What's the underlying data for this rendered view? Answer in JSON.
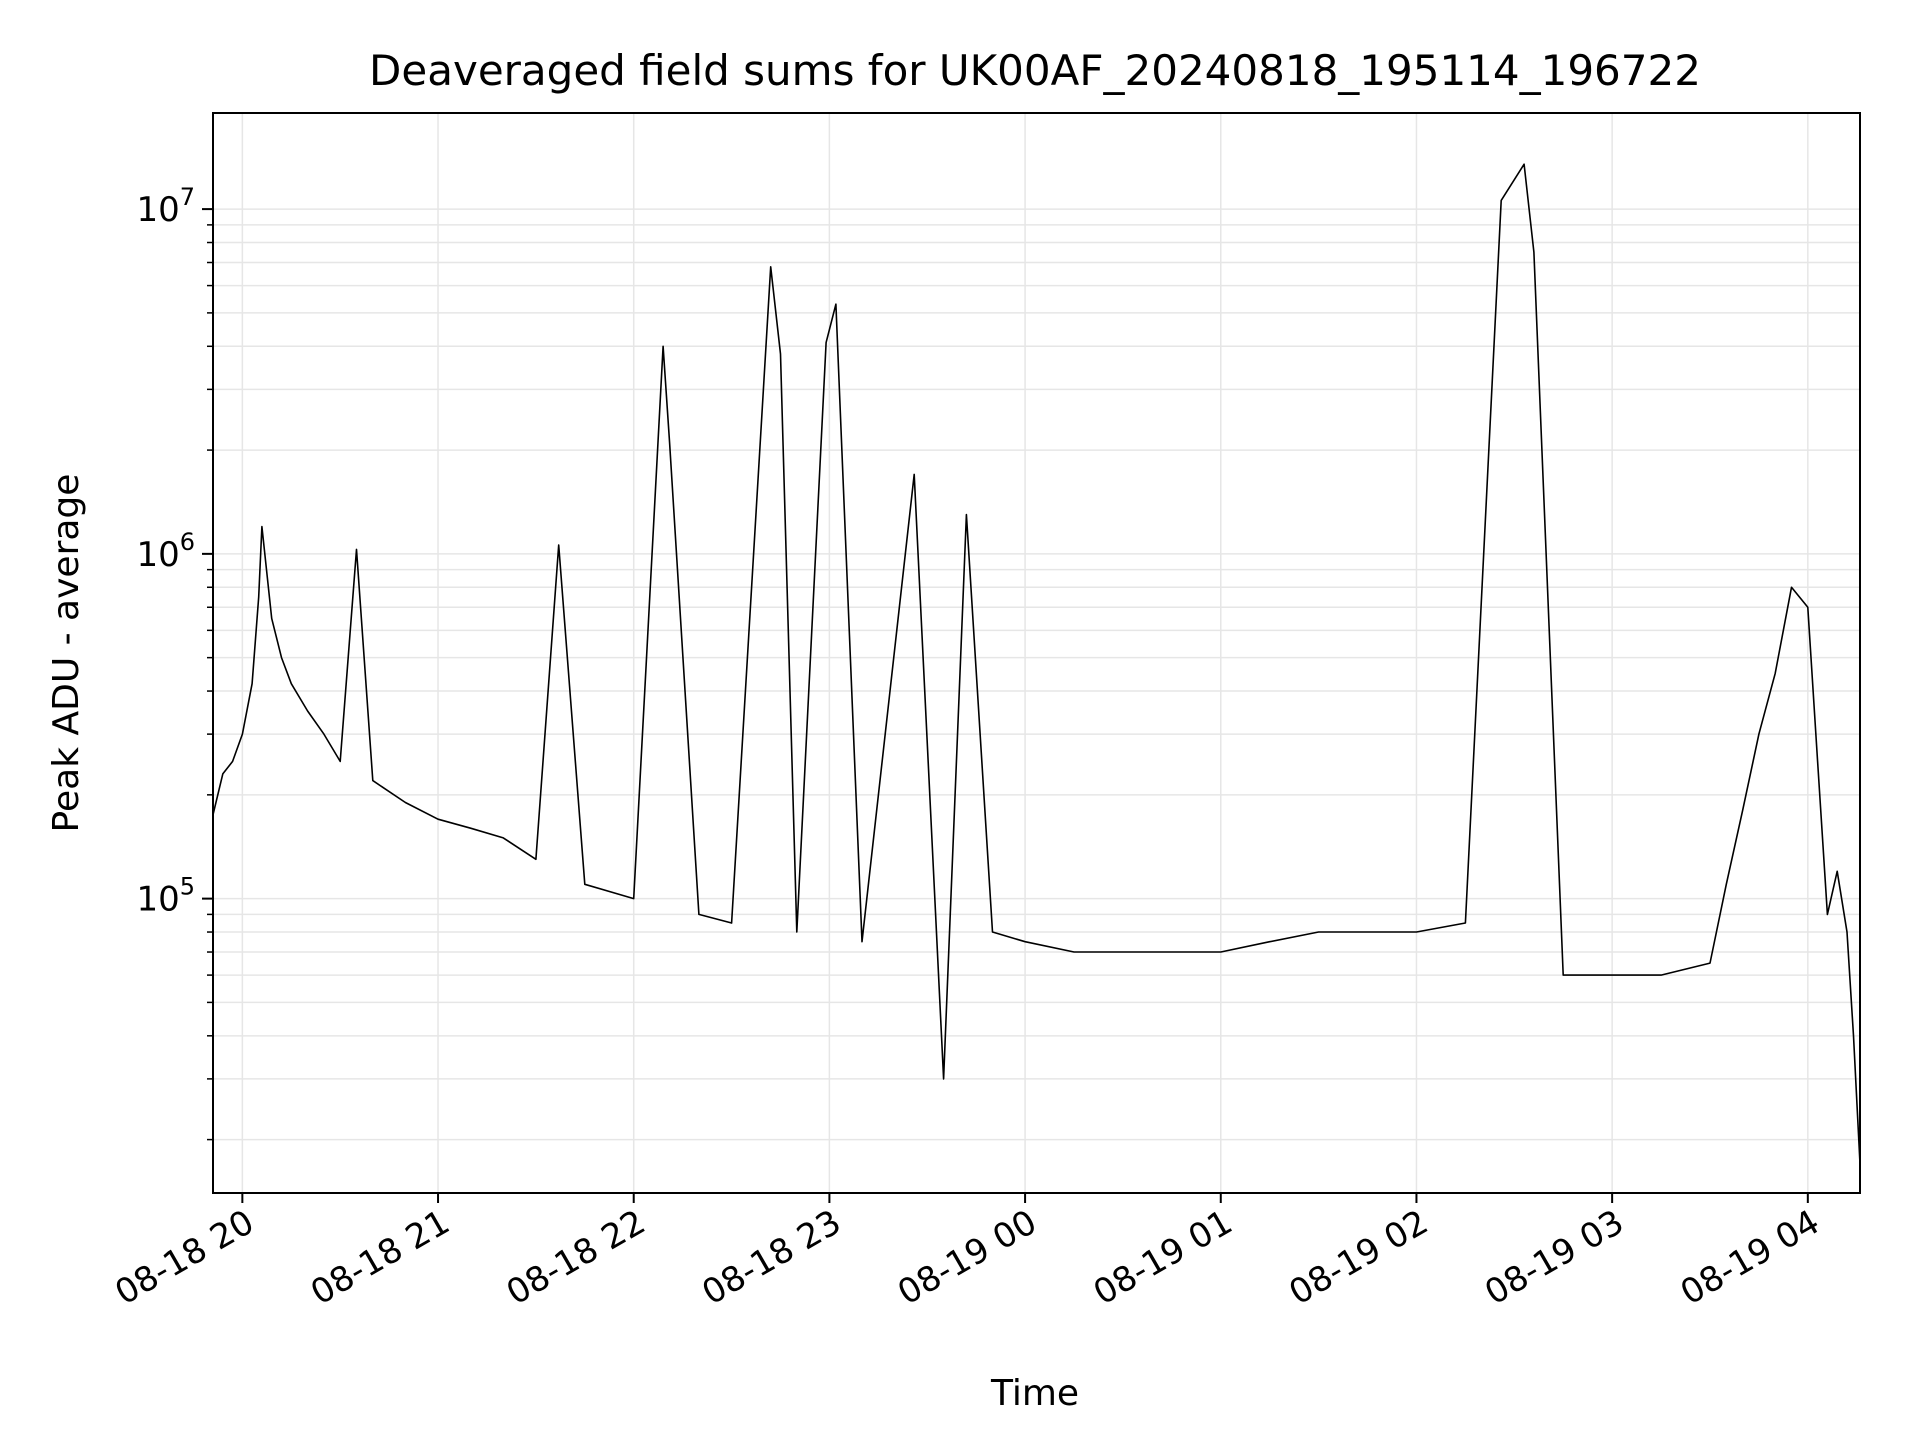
{
  "chart_data": {
    "type": "line",
    "title": "Deaveraged field sums for UK00AF_20240818_195114_196722",
    "xlabel": "Time",
    "ylabel": "Peak ADU - average",
    "yscale": "log",
    "xlim": [
      "2024-08-18 19:51",
      "2024-08-19 04:16"
    ],
    "ylim": [
      14000,
      19000000
    ],
    "x_ticks": [
      "08-18 20",
      "08-18 21",
      "08-18 22",
      "08-18 23",
      "08-19 00",
      "08-19 01",
      "08-19 02",
      "08-19 03",
      "08-19 04"
    ],
    "y_ticks": [
      {
        "base": "10",
        "exp": "5",
        "value": 100000
      },
      {
        "base": "10",
        "exp": "6",
        "value": 1000000
      },
      {
        "base": "10",
        "exp": "7",
        "value": 10000000
      }
    ],
    "grid": true,
    "line_color": "#000000",
    "series": [
      {
        "points": [
          [
            "2024-08-18 19:51",
            175000
          ],
          [
            "2024-08-18 19:54",
            230000
          ],
          [
            "2024-08-18 19:57",
            250000
          ],
          [
            "2024-08-18 20:00",
            300000
          ],
          [
            "2024-08-18 20:03",
            420000
          ],
          [
            "2024-08-18 20:05",
            750000
          ],
          [
            "2024-08-18 20:06",
            1200000
          ],
          [
            "2024-08-18 20:09",
            650000
          ],
          [
            "2024-08-18 20:12",
            500000
          ],
          [
            "2024-08-18 20:15",
            420000
          ],
          [
            "2024-08-18 20:20",
            350000
          ],
          [
            "2024-08-18 20:25",
            300000
          ],
          [
            "2024-08-18 20:30",
            250000
          ],
          [
            "2024-08-18 20:35",
            1030000
          ],
          [
            "2024-08-18 20:40",
            220000
          ],
          [
            "2024-08-18 20:50",
            190000
          ],
          [
            "2024-08-18 21:00",
            170000
          ],
          [
            "2024-08-18 21:10",
            160000
          ],
          [
            "2024-08-18 21:20",
            150000
          ],
          [
            "2024-08-18 21:30",
            130000
          ],
          [
            "2024-08-18 21:37",
            1060000
          ],
          [
            "2024-08-18 21:45",
            110000
          ],
          [
            "2024-08-18 22:00",
            100000
          ],
          [
            "2024-08-18 22:09",
            4000000
          ],
          [
            "2024-08-18 22:11",
            2100000
          ],
          [
            "2024-08-18 22:20",
            90000
          ],
          [
            "2024-08-18 22:30",
            85000
          ],
          [
            "2024-08-18 22:42",
            6800000
          ],
          [
            "2024-08-18 22:45",
            3800000
          ],
          [
            "2024-08-18 22:50",
            80000
          ],
          [
            "2024-08-18 22:59",
            4100000
          ],
          [
            "2024-08-18 23:02",
            5300000
          ],
          [
            "2024-08-18 23:10",
            75000
          ],
          [
            "2024-08-18 23:26",
            1700000
          ],
          [
            "2024-08-18 23:35",
            30000
          ],
          [
            "2024-08-18 23:42",
            1300000
          ],
          [
            "2024-08-18 23:50",
            80000
          ],
          [
            "2024-08-19 00:00",
            75000
          ],
          [
            "2024-08-19 00:15",
            70000
          ],
          [
            "2024-08-19 00:30",
            70000
          ],
          [
            "2024-08-19 00:45",
            70000
          ],
          [
            "2024-08-19 01:00",
            70000
          ],
          [
            "2024-08-19 01:15",
            75000
          ],
          [
            "2024-08-19 01:30",
            80000
          ],
          [
            "2024-08-19 01:45",
            80000
          ],
          [
            "2024-08-19 02:00",
            80000
          ],
          [
            "2024-08-19 02:15",
            85000
          ],
          [
            "2024-08-19 02:26",
            10600000
          ],
          [
            "2024-08-19 02:33",
            13500000
          ],
          [
            "2024-08-19 02:36",
            7500000
          ],
          [
            "2024-08-19 02:45",
            60000
          ],
          [
            "2024-08-19 03:00",
            60000
          ],
          [
            "2024-08-19 03:15",
            60000
          ],
          [
            "2024-08-19 03:30",
            65000
          ],
          [
            "2024-08-19 03:35",
            110000
          ],
          [
            "2024-08-19 03:40",
            180000
          ],
          [
            "2024-08-19 03:45",
            300000
          ],
          [
            "2024-08-19 03:50",
            450000
          ],
          [
            "2024-08-19 03:55",
            800000
          ],
          [
            "2024-08-19 04:00",
            700000
          ],
          [
            "2024-08-19 04:03",
            250000
          ],
          [
            "2024-08-19 04:06",
            90000
          ],
          [
            "2024-08-19 04:09",
            120000
          ],
          [
            "2024-08-19 04:12",
            80000
          ],
          [
            "2024-08-19 04:14",
            40000
          ],
          [
            "2024-08-19 04:16",
            17000
          ]
        ]
      }
    ]
  }
}
